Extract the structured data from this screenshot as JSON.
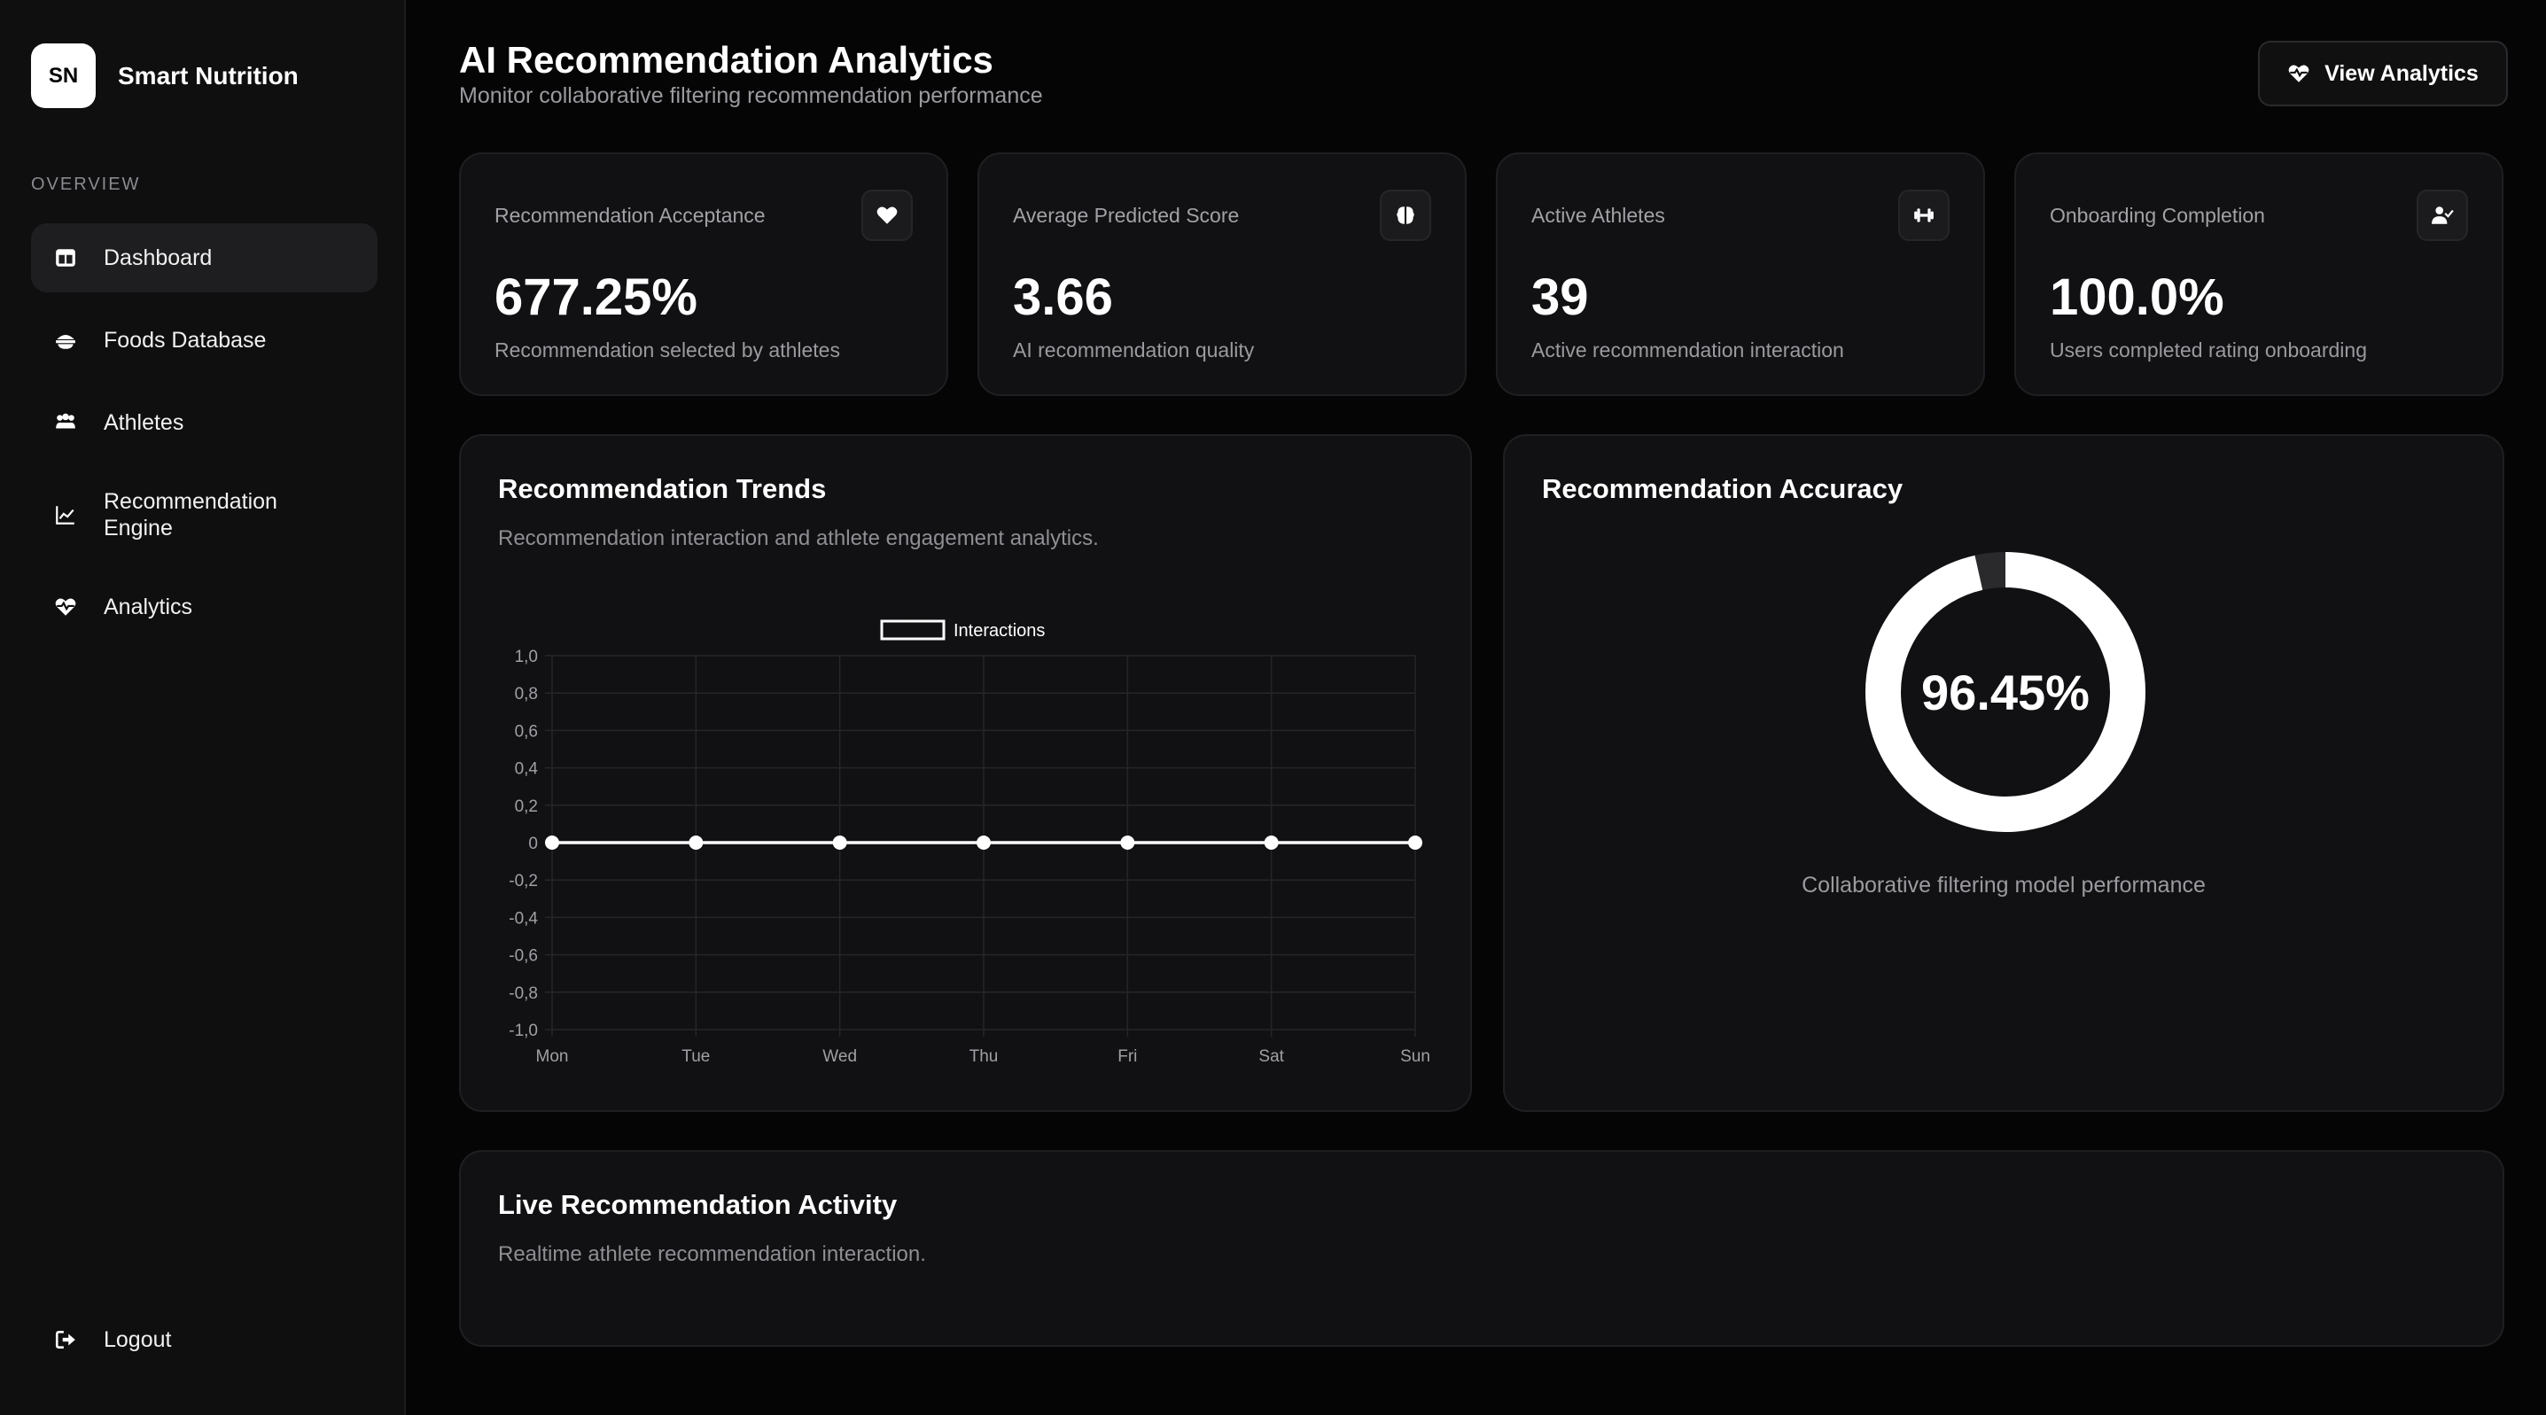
{
  "brand": {
    "logo": "SN",
    "name": "Smart Nutrition"
  },
  "sidebar": {
    "section": "OVERVIEW",
    "items": [
      {
        "label": "Dashboard",
        "icon": "dashboard-icon",
        "active": true
      },
      {
        "label": "Foods Database",
        "icon": "food-bowl-icon"
      },
      {
        "label": "Athletes",
        "icon": "users-icon"
      },
      {
        "label": "Recommendation Engine",
        "icon": "line-chart-icon"
      },
      {
        "label": "Analytics",
        "icon": "heart-pulse-icon"
      }
    ],
    "logout": "Logout"
  },
  "header": {
    "title": "AI Recommendation Analytics",
    "subtitle": "Monitor collaborative filtering recommendation performance",
    "button": "View Analytics"
  },
  "stats": [
    {
      "label": "Recommendation Acceptance",
      "value": "677.25%",
      "desc": "Recommendation selected by athletes",
      "icon": "heart-icon"
    },
    {
      "label": "Average Predicted Score",
      "value": "3.66",
      "desc": "AI recommendation quality",
      "icon": "brain-icon"
    },
    {
      "label": "Active Athletes",
      "value": "39",
      "desc": "Active recommendation interaction",
      "icon": "dumbbell-icon"
    },
    {
      "label": "Onboarding Completion",
      "value": "100.0%",
      "desc": "Users completed rating onboarding",
      "icon": "user-check-icon"
    }
  ],
  "trends": {
    "title": "Recommendation Trends",
    "subtitle": "Recommendation interaction and athlete engagement analytics."
  },
  "accuracy": {
    "title": "Recommendation Accuracy",
    "value": "96.45%",
    "fraction": 0.9645,
    "caption": "Collaborative filtering model performance"
  },
  "activity": {
    "title": "Live Recommendation Activity",
    "subtitle": "Realtime athlete recommendation interaction."
  },
  "chart_data": {
    "type": "line",
    "categories": [
      "Mon",
      "Tue",
      "Wed",
      "Thu",
      "Fri",
      "Sat",
      "Sun"
    ],
    "series": [
      {
        "name": "Interactions",
        "values": [
          0,
          0,
          0,
          0,
          0,
          0,
          0
        ]
      }
    ],
    "yticks": [
      "1,0",
      "0,8",
      "0,6",
      "0,4",
      "0,2",
      "0",
      "-0,2",
      "-0,4",
      "-0,6",
      "-0,8",
      "-1,0"
    ],
    "ylim": [
      -1,
      1
    ],
    "grid": true,
    "legend": "top-center",
    "title": "",
    "xlabel": "",
    "ylabel": ""
  }
}
